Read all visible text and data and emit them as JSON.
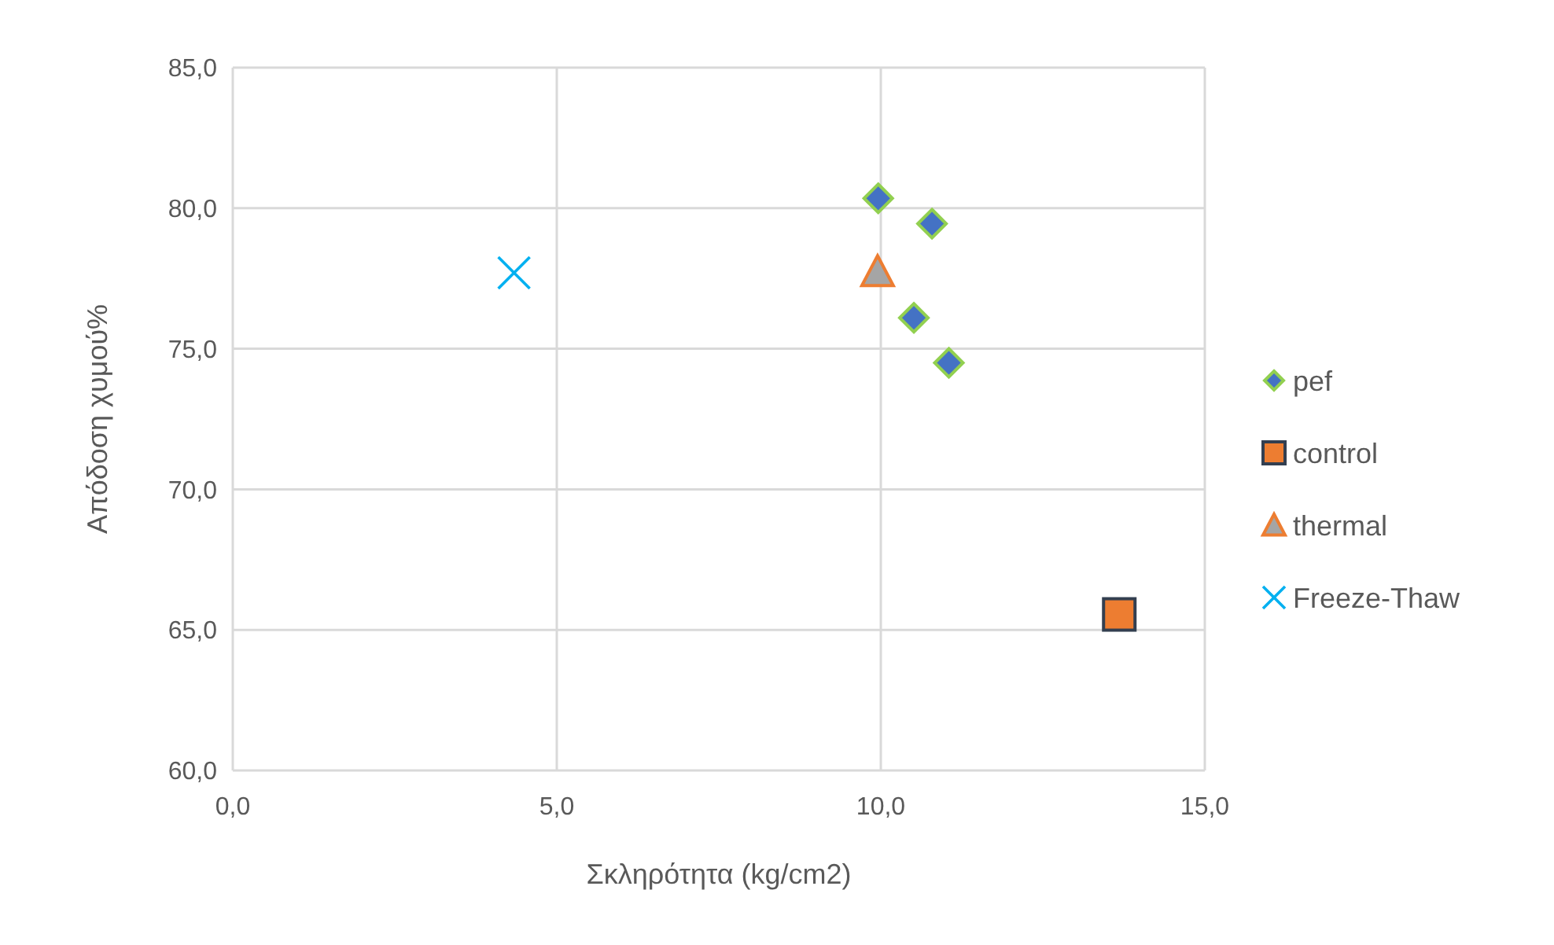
{
  "chart_data": {
    "type": "scatter",
    "xlabel": "Σκληρότητα (kg/cm2)",
    "ylabel": "Απόδοση χυμού%",
    "xlim": [
      0,
      15
    ],
    "xticks": [
      {
        "value": 0,
        "label": "0,0"
      },
      {
        "value": 5,
        "label": "5,0"
      },
      {
        "value": 10,
        "label": "10,0"
      },
      {
        "value": 15,
        "label": "15,0"
      }
    ],
    "ylim": [
      60,
      85
    ],
    "yticks": [
      {
        "value": 60,
        "label": "60,0"
      },
      {
        "value": 65,
        "label": "65,0"
      },
      {
        "value": 70,
        "label": "70,0"
      },
      {
        "value": 75,
        "label": "75,0"
      },
      {
        "value": 80,
        "label": "80,0"
      },
      {
        "value": 85,
        "label": "85,0"
      }
    ],
    "grid": true,
    "legend": "right",
    "series": [
      {
        "name": "pef",
        "color": "#4472c4",
        "marker": "diamond",
        "x": [
          9.96,
          10.79,
          10.51,
          11.05
        ],
        "values": [
          80.35,
          79.45,
          76.1,
          74.5
        ]
      },
      {
        "name": "control",
        "color": "#ed7d31",
        "marker": "square",
        "x": [
          13.68
        ],
        "values": [
          65.55
        ]
      },
      {
        "name": "thermal",
        "color": "#a5a5a5",
        "marker": "triangle",
        "x": [
          9.95
        ],
        "values": [
          77.75
        ]
      },
      {
        "name": "Freeze-Thaw",
        "color": "#00b0f0",
        "marker": "cross",
        "x": [
          4.34
        ],
        "values": [
          77.7
        ]
      }
    ]
  }
}
